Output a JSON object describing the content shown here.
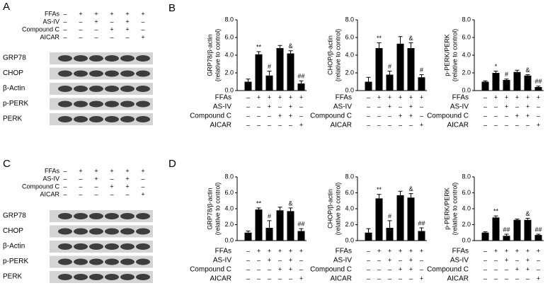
{
  "panel_letters": [
    "A",
    "B",
    "C",
    "D"
  ],
  "blots": [
    {
      "treatments": [
        {
          "name": "FFAs",
          "signs": [
            "–",
            "+",
            "+",
            "+",
            "+",
            "+"
          ]
        },
        {
          "name": "AS-IV",
          "signs": [
            "–",
            "–",
            "+",
            "–",
            "+",
            "–"
          ]
        },
        {
          "name": "Compound C",
          "signs": [
            "–",
            "–",
            "–",
            "+",
            "+",
            "–"
          ]
        },
        {
          "name": "AICAR",
          "signs": [
            "–",
            "–",
            "–",
            "–",
            "–",
            "+"
          ]
        }
      ],
      "bands": [
        "GRP78",
        "CHOP",
        "β-Actin",
        "p-PERK",
        "PERK"
      ]
    },
    {
      "treatments": [
        {
          "name": "FFAs",
          "signs": [
            "–",
            "+",
            "+",
            "+",
            "+",
            "+"
          ]
        },
        {
          "name": "AS-IV",
          "signs": [
            "–",
            "–",
            "+",
            "–",
            "+",
            "–"
          ]
        },
        {
          "name": "Compound C",
          "signs": [
            "–",
            "–",
            "–",
            "+",
            "+",
            "–"
          ]
        },
        {
          "name": "AICAR",
          "signs": [
            "–",
            "–",
            "–",
            "–",
            "–",
            "+"
          ]
        }
      ],
      "bands": [
        "GRP78",
        "CHOP",
        "β-Actin",
        "p-PERK",
        "PERK"
      ]
    }
  ],
  "chart_data": [
    {
      "type": "bar",
      "ylabel": [
        "GRP78/β-actin",
        "(relative to control)"
      ],
      "color": "#000000",
      "categories": [
        null,
        null,
        null,
        null,
        null,
        null
      ],
      "values": [
        1.0,
        4.1,
        1.7,
        4.8,
        4.2,
        0.8
      ],
      "errors": [
        0.3,
        0.3,
        0.5,
        0.3,
        0.3,
        0.3
      ],
      "annotations": [
        null,
        "**",
        "#",
        null,
        "&",
        "##"
      ],
      "ylim": [
        0,
        8
      ],
      "yticks": [
        {
          "value": 0,
          "label": "0.0"
        },
        {
          "value": 2,
          "label": "2.0"
        },
        {
          "value": 4,
          "label": "4.0"
        },
        {
          "value": 6,
          "label": "6.0"
        },
        {
          "value": 8,
          "label": "8.0"
        }
      ],
      "treatments": [
        {
          "name": "FFAs",
          "signs": [
            "–",
            "+",
            "+",
            "+",
            "+",
            "+"
          ]
        },
        {
          "name": "AS-IV",
          "signs": [
            "–",
            "–",
            "+",
            "–",
            "+",
            "–"
          ]
        },
        {
          "name": "Compound C",
          "signs": [
            "–",
            "–",
            "–",
            "+",
            "+",
            "–"
          ]
        },
        {
          "name": "AICAR",
          "signs": [
            "–",
            "–",
            "–",
            "–",
            "–",
            "+"
          ]
        }
      ]
    },
    {
      "type": "bar",
      "ylabel": [
        "CHOP/β-actin",
        "(relative to control)"
      ],
      "color": "#000000",
      "categories": [
        null,
        null,
        null,
        null,
        null,
        null
      ],
      "values": [
        1.0,
        4.8,
        1.8,
        5.3,
        4.8,
        1.5
      ],
      "errors": [
        0.5,
        0.6,
        0.4,
        0.8,
        0.6,
        0.3
      ],
      "annotations": [
        null,
        "**",
        "#",
        null,
        "&",
        "#"
      ],
      "ylim": [
        0,
        8
      ],
      "yticks": [
        {
          "value": 0,
          "label": "0.0"
        },
        {
          "value": 2,
          "label": "2.0"
        },
        {
          "value": 4,
          "label": "4.0"
        },
        {
          "value": 6,
          "label": "6.0"
        },
        {
          "value": 8,
          "label": "8.0"
        }
      ],
      "treatments": [
        {
          "name": "FFAs",
          "signs": [
            "–",
            "+",
            "+",
            "+",
            "+",
            "+"
          ]
        },
        {
          "name": "AS-IV",
          "signs": [
            "–",
            "–",
            "+",
            "–",
            "+",
            "–"
          ]
        },
        {
          "name": "Compound C",
          "signs": [
            "–",
            "–",
            "–",
            "+",
            "+",
            "–"
          ]
        },
        {
          "name": "AICAR",
          "signs": [
            "–",
            "–",
            "–",
            "–",
            "–",
            "+"
          ]
        }
      ]
    },
    {
      "type": "bar",
      "ylabel": [
        "p-PERK/PERK",
        "(relative to control)"
      ],
      "color": "#000000",
      "categories": [
        null,
        null,
        null,
        null,
        null,
        null
      ],
      "values": [
        1.0,
        2.0,
        1.2,
        2.1,
        1.7,
        0.4
      ],
      "errors": [
        0.1,
        0.2,
        0.1,
        0.2,
        0.1,
        0.1
      ],
      "annotations": [
        null,
        "*",
        "#",
        null,
        "&",
        "##"
      ],
      "ylim": [
        0,
        8
      ],
      "yticks": [
        {
          "value": 0,
          "label": "0.0"
        },
        {
          "value": 2,
          "label": "2.0"
        },
        {
          "value": 4,
          "label": "4.0"
        },
        {
          "value": 6,
          "label": "6.0"
        },
        {
          "value": 8,
          "label": "8.0"
        }
      ],
      "treatments": [
        {
          "name": "FFAs",
          "signs": [
            "–",
            "+",
            "+",
            "+",
            "+",
            "+"
          ]
        },
        {
          "name": "AS-IV",
          "signs": [
            "–",
            "–",
            "+",
            "–",
            "+",
            "–"
          ]
        },
        {
          "name": "Compound C",
          "signs": [
            "–",
            "–",
            "–",
            "+",
            "+",
            "–"
          ]
        },
        {
          "name": "AICAR",
          "signs": [
            "–",
            "–",
            "–",
            "–",
            "–",
            "+"
          ]
        }
      ]
    },
    {
      "type": "bar",
      "ylabel": [
        "GRP78/β-actin",
        "(relative to control)"
      ],
      "color": "#000000",
      "categories": [
        null,
        null,
        null,
        null,
        null,
        null
      ],
      "values": [
        1.0,
        3.9,
        1.6,
        3.8,
        3.7,
        1.2
      ],
      "errors": [
        0.2,
        0.2,
        0.9,
        0.4,
        0.4,
        0.3
      ],
      "annotations": [
        null,
        "**",
        "#",
        null,
        "&",
        "##"
      ],
      "ylim": [
        0,
        8
      ],
      "yticks": [
        {
          "value": 0,
          "label": "0.0"
        },
        {
          "value": 2,
          "label": "2.0"
        },
        {
          "value": 4,
          "label": "4.0"
        },
        {
          "value": 6,
          "label": "6.0"
        },
        {
          "value": 8,
          "label": "8.0"
        }
      ],
      "treatments": [
        {
          "name": "FFAs",
          "signs": [
            "–",
            "+",
            "+",
            "+",
            "+",
            "+"
          ]
        },
        {
          "name": "AS-IV",
          "signs": [
            "–",
            "–",
            "+",
            "–",
            "+",
            "–"
          ]
        },
        {
          "name": "Compound C",
          "signs": [
            "–",
            "–",
            "–",
            "+",
            "+",
            "–"
          ]
        },
        {
          "name": "AICAR",
          "signs": [
            "–",
            "–",
            "–",
            "–",
            "–",
            "+"
          ]
        }
      ]
    },
    {
      "type": "bar",
      "ylabel": [
        "CHOP/β-actin",
        "(relative to control)"
      ],
      "color": "#000000",
      "categories": [
        null,
        null,
        null,
        null,
        null,
        null
      ],
      "values": [
        1.0,
        5.3,
        1.6,
        5.7,
        5.4,
        1.2
      ],
      "errors": [
        0.5,
        0.5,
        0.9,
        0.5,
        0.5,
        0.4
      ],
      "annotations": [
        null,
        "**",
        "#",
        null,
        "&",
        "##"
      ],
      "ylim": [
        0,
        8
      ],
      "yticks": [
        {
          "value": 0,
          "label": "0.0"
        },
        {
          "value": 2,
          "label": "2.0"
        },
        {
          "value": 4,
          "label": "4.0"
        },
        {
          "value": 6,
          "label": "6.0"
        },
        {
          "value": 8,
          "label": "8.0"
        }
      ],
      "treatments": [
        {
          "name": "FFAs",
          "signs": [
            "–",
            "+",
            "+",
            "+",
            "+",
            "+"
          ]
        },
        {
          "name": "AS-IV",
          "signs": [
            "–",
            "–",
            "+",
            "–",
            "+",
            "–"
          ]
        },
        {
          "name": "Compound C",
          "signs": [
            "–",
            "–",
            "–",
            "+",
            "+",
            "–"
          ]
        },
        {
          "name": "AICAR",
          "signs": [
            "–",
            "–",
            "–",
            "–",
            "–",
            "+"
          ]
        }
      ]
    },
    {
      "type": "bar",
      "ylabel": [
        "p-PERK/PERK",
        "(relative to control)"
      ],
      "color": "#000000",
      "categories": [
        null,
        null,
        null,
        null,
        null,
        null
      ],
      "values": [
        1.0,
        2.9,
        0.6,
        2.6,
        2.6,
        0.7
      ],
      "errors": [
        0.1,
        0.2,
        0.2,
        0.1,
        0.2,
        0.1
      ],
      "annotations": [
        null,
        "**",
        "##",
        null,
        "&",
        "##"
      ],
      "ylim": [
        0,
        8
      ],
      "yticks": [
        {
          "value": 0,
          "label": "0.0"
        },
        {
          "value": 2,
          "label": "2.0"
        },
        {
          "value": 4,
          "label": "4.0"
        },
        {
          "value": 6,
          "label": "6.0"
        },
        {
          "value": 8,
          "label": "8.0"
        }
      ],
      "treatments": [
        {
          "name": "FFAs",
          "signs": [
            "–",
            "+",
            "+",
            "+",
            "+",
            "+"
          ]
        },
        {
          "name": "AS-IV",
          "signs": [
            "–",
            "–",
            "+",
            "–",
            "+",
            "–"
          ]
        },
        {
          "name": "Compound C",
          "signs": [
            "–",
            "–",
            "–",
            "+",
            "+",
            "–"
          ]
        },
        {
          "name": "AICAR",
          "signs": [
            "–",
            "–",
            "–",
            "–",
            "–",
            "+"
          ]
        }
      ]
    }
  ]
}
